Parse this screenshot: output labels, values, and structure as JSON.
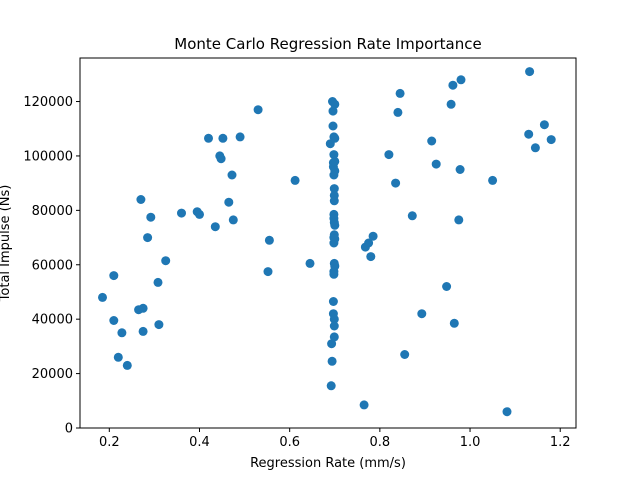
{
  "chart_data": {
    "type": "scatter",
    "title": "Monte Carlo Regression Rate Importance",
    "xlabel": "Regression Rate (mm/s)",
    "ylabel": "Total Impulse (Ns)",
    "xlim": [
      0.135,
      1.235
    ],
    "ylim": [
      0,
      136000
    ],
    "xticks": [
      {
        "value": 0.2,
        "label": "0.2"
      },
      {
        "value": 0.4,
        "label": "0.4"
      },
      {
        "value": 0.6,
        "label": "0.6"
      },
      {
        "value": 0.8,
        "label": "0.8"
      },
      {
        "value": 1.0,
        "label": "1.0"
      },
      {
        "value": 1.2,
        "label": "1.2"
      }
    ],
    "yticks": [
      {
        "value": 0,
        "label": "0"
      },
      {
        "value": 20000,
        "label": "20000"
      },
      {
        "value": 40000,
        "label": "40000"
      },
      {
        "value": 60000,
        "label": "60000"
      },
      {
        "value": 80000,
        "label": "80000"
      },
      {
        "value": 100000,
        "label": "100000"
      },
      {
        "value": 120000,
        "label": "120000"
      }
    ],
    "grid": false,
    "color": "#1f77b4",
    "points": [
      [
        0.185,
        48000
      ],
      [
        0.21,
        56000
      ],
      [
        0.21,
        39500
      ],
      [
        0.22,
        26000
      ],
      [
        0.228,
        35000
      ],
      [
        0.24,
        23000
      ],
      [
        0.265,
        43500
      ],
      [
        0.27,
        84000
      ],
      [
        0.275,
        44000
      ],
      [
        0.275,
        35500
      ],
      [
        0.285,
        70000
      ],
      [
        0.292,
        77500
      ],
      [
        0.308,
        53500
      ],
      [
        0.31,
        38000
      ],
      [
        0.325,
        61500
      ],
      [
        0.36,
        79000
      ],
      [
        0.395,
        79500
      ],
      [
        0.4,
        78500
      ],
      [
        0.42,
        106500
      ],
      [
        0.435,
        74000
      ],
      [
        0.445,
        100000
      ],
      [
        0.448,
        99000
      ],
      [
        0.452,
        106500
      ],
      [
        0.465,
        83000
      ],
      [
        0.472,
        93000
      ],
      [
        0.475,
        76500
      ],
      [
        0.49,
        107000
      ],
      [
        0.53,
        117000
      ],
      [
        0.552,
        57500
      ],
      [
        0.555,
        69000
      ],
      [
        0.612,
        91000
      ],
      [
        0.645,
        60500
      ],
      [
        0.69,
        104500
      ],
      [
        0.692,
        15500
      ],
      [
        0.693,
        31000
      ],
      [
        0.694,
        24500
      ],
      [
        0.695,
        120000
      ],
      [
        0.696,
        116500
      ],
      [
        0.696,
        111000
      ],
      [
        0.697,
        97500
      ],
      [
        0.697,
        96000
      ],
      [
        0.697,
        46500
      ],
      [
        0.697,
        42000
      ],
      [
        0.698,
        107000
      ],
      [
        0.698,
        100500
      ],
      [
        0.698,
        93000
      ],
      [
        0.698,
        78500
      ],
      [
        0.698,
        77000
      ],
      [
        0.698,
        70000
      ],
      [
        0.698,
        68000
      ],
      [
        0.698,
        57500
      ],
      [
        0.698,
        56500
      ],
      [
        0.699,
        88000
      ],
      [
        0.699,
        85500
      ],
      [
        0.699,
        83500
      ],
      [
        0.699,
        75500
      ],
      [
        0.699,
        71000
      ],
      [
        0.699,
        60500
      ],
      [
        0.699,
        40000
      ],
      [
        0.699,
        37500
      ],
      [
        0.699,
        33500
      ],
      [
        0.7,
        119000
      ],
      [
        0.7,
        106500
      ],
      [
        0.7,
        98000
      ],
      [
        0.7,
        94500
      ],
      [
        0.7,
        74500
      ],
      [
        0.7,
        69500
      ],
      [
        0.7,
        59500
      ],
      [
        0.765,
        8500
      ],
      [
        0.768,
        66500
      ],
      [
        0.775,
        68000
      ],
      [
        0.78,
        63000
      ],
      [
        0.785,
        70500
      ],
      [
        0.82,
        100500
      ],
      [
        0.835,
        90000
      ],
      [
        0.84,
        116000
      ],
      [
        0.845,
        123000
      ],
      [
        0.855,
        27000
      ],
      [
        0.872,
        78000
      ],
      [
        0.893,
        42000
      ],
      [
        0.915,
        105500
      ],
      [
        0.925,
        97000
      ],
      [
        0.948,
        52000
      ],
      [
        0.958,
        119000
      ],
      [
        0.962,
        126000
      ],
      [
        0.965,
        38500
      ],
      [
        0.975,
        76500
      ],
      [
        0.978,
        95000
      ],
      [
        0.98,
        128000
      ],
      [
        1.05,
        91000
      ],
      [
        1.082,
        6000
      ],
      [
        1.13,
        108000
      ],
      [
        1.132,
        131000
      ],
      [
        1.145,
        103000
      ],
      [
        1.165,
        111500
      ],
      [
        1.18,
        106000
      ]
    ]
  }
}
